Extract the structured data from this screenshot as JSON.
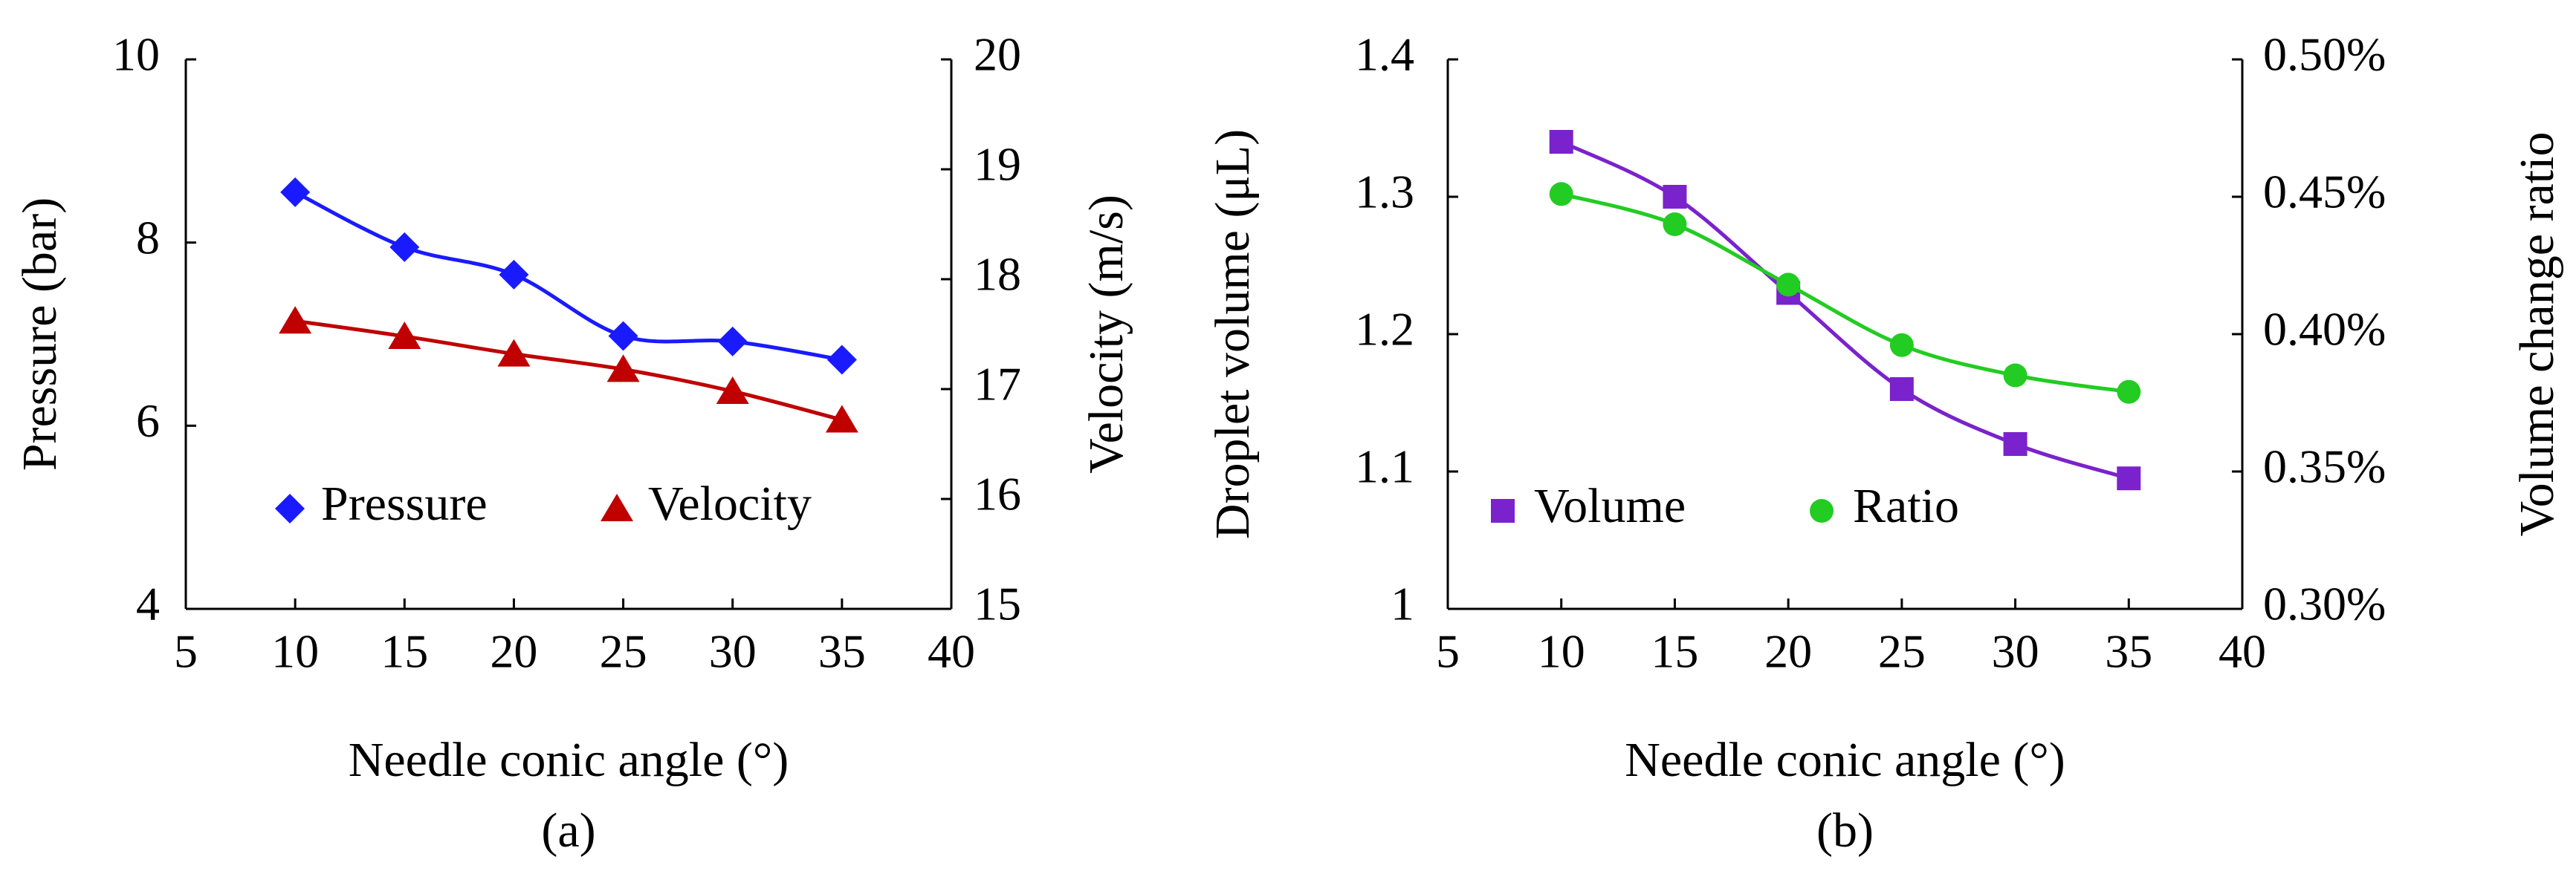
{
  "chart_data": [
    {
      "type": "line",
      "panel_label": "(a)",
      "xlabel": "Needle conic angle (°)",
      "xlim": [
        5,
        40
      ],
      "xticks": [
        5,
        10,
        15,
        20,
        25,
        30,
        35,
        40
      ],
      "y_left": {
        "label": "Pressure (bar)",
        "lim": [
          4,
          10
        ],
        "ticks": [
          4,
          6,
          8,
          10
        ]
      },
      "y_right": {
        "label": "Velocity (m/s)",
        "lim": [
          15,
          20
        ],
        "ticks": [
          15,
          16,
          17,
          18,
          19,
          20
        ]
      },
      "grid": false,
      "legend_position": "bottom",
      "series": [
        {
          "name": "Pressure",
          "axis": "left",
          "marker": "diamond",
          "color": "#1a1aff",
          "x": [
            10,
            15,
            20,
            25,
            30,
            35
          ],
          "y": [
            8.55,
            7.95,
            7.65,
            6.98,
            6.92,
            6.72
          ]
        },
        {
          "name": "Velocity",
          "axis": "right",
          "marker": "triangle",
          "color": "#c00000",
          "x": [
            10,
            15,
            20,
            25,
            30,
            35
          ],
          "y": [
            17.62,
            17.48,
            17.32,
            17.18,
            16.98,
            16.72
          ]
        }
      ]
    },
    {
      "type": "line",
      "panel_label": "(b)",
      "xlabel": "Needle conic angle (°)",
      "xlim": [
        5,
        40
      ],
      "xticks": [
        5,
        10,
        15,
        20,
        25,
        30,
        35,
        40
      ],
      "y_left": {
        "label": "Droplet volume (μL)",
        "lim": [
          1,
          1.4
        ],
        "ticks": [
          "1",
          "1.1",
          "1.2",
          "1.3",
          "1.4"
        ]
      },
      "y_right": {
        "label": "Volume change ratio",
        "lim": [
          0.3,
          0.5
        ],
        "ticks": [
          "0.30%",
          "0.35%",
          "0.40%",
          "0.45%",
          "0.50%"
        ]
      },
      "grid": false,
      "legend_position": "bottom-left",
      "series": [
        {
          "name": "Volume",
          "axis": "left",
          "marker": "square",
          "color": "#7a22cc",
          "x": [
            10,
            15,
            20,
            25,
            30,
            35
          ],
          "y": [
            1.34,
            1.3,
            1.23,
            1.16,
            1.12,
            1.095
          ]
        },
        {
          "name": "Ratio",
          "axis": "right",
          "marker": "circle",
          "color": "#22cc22",
          "x": [
            10,
            15,
            20,
            25,
            30,
            35
          ],
          "y": [
            0.451,
            0.44,
            0.418,
            0.396,
            0.385,
            0.379
          ]
        }
      ]
    }
  ]
}
